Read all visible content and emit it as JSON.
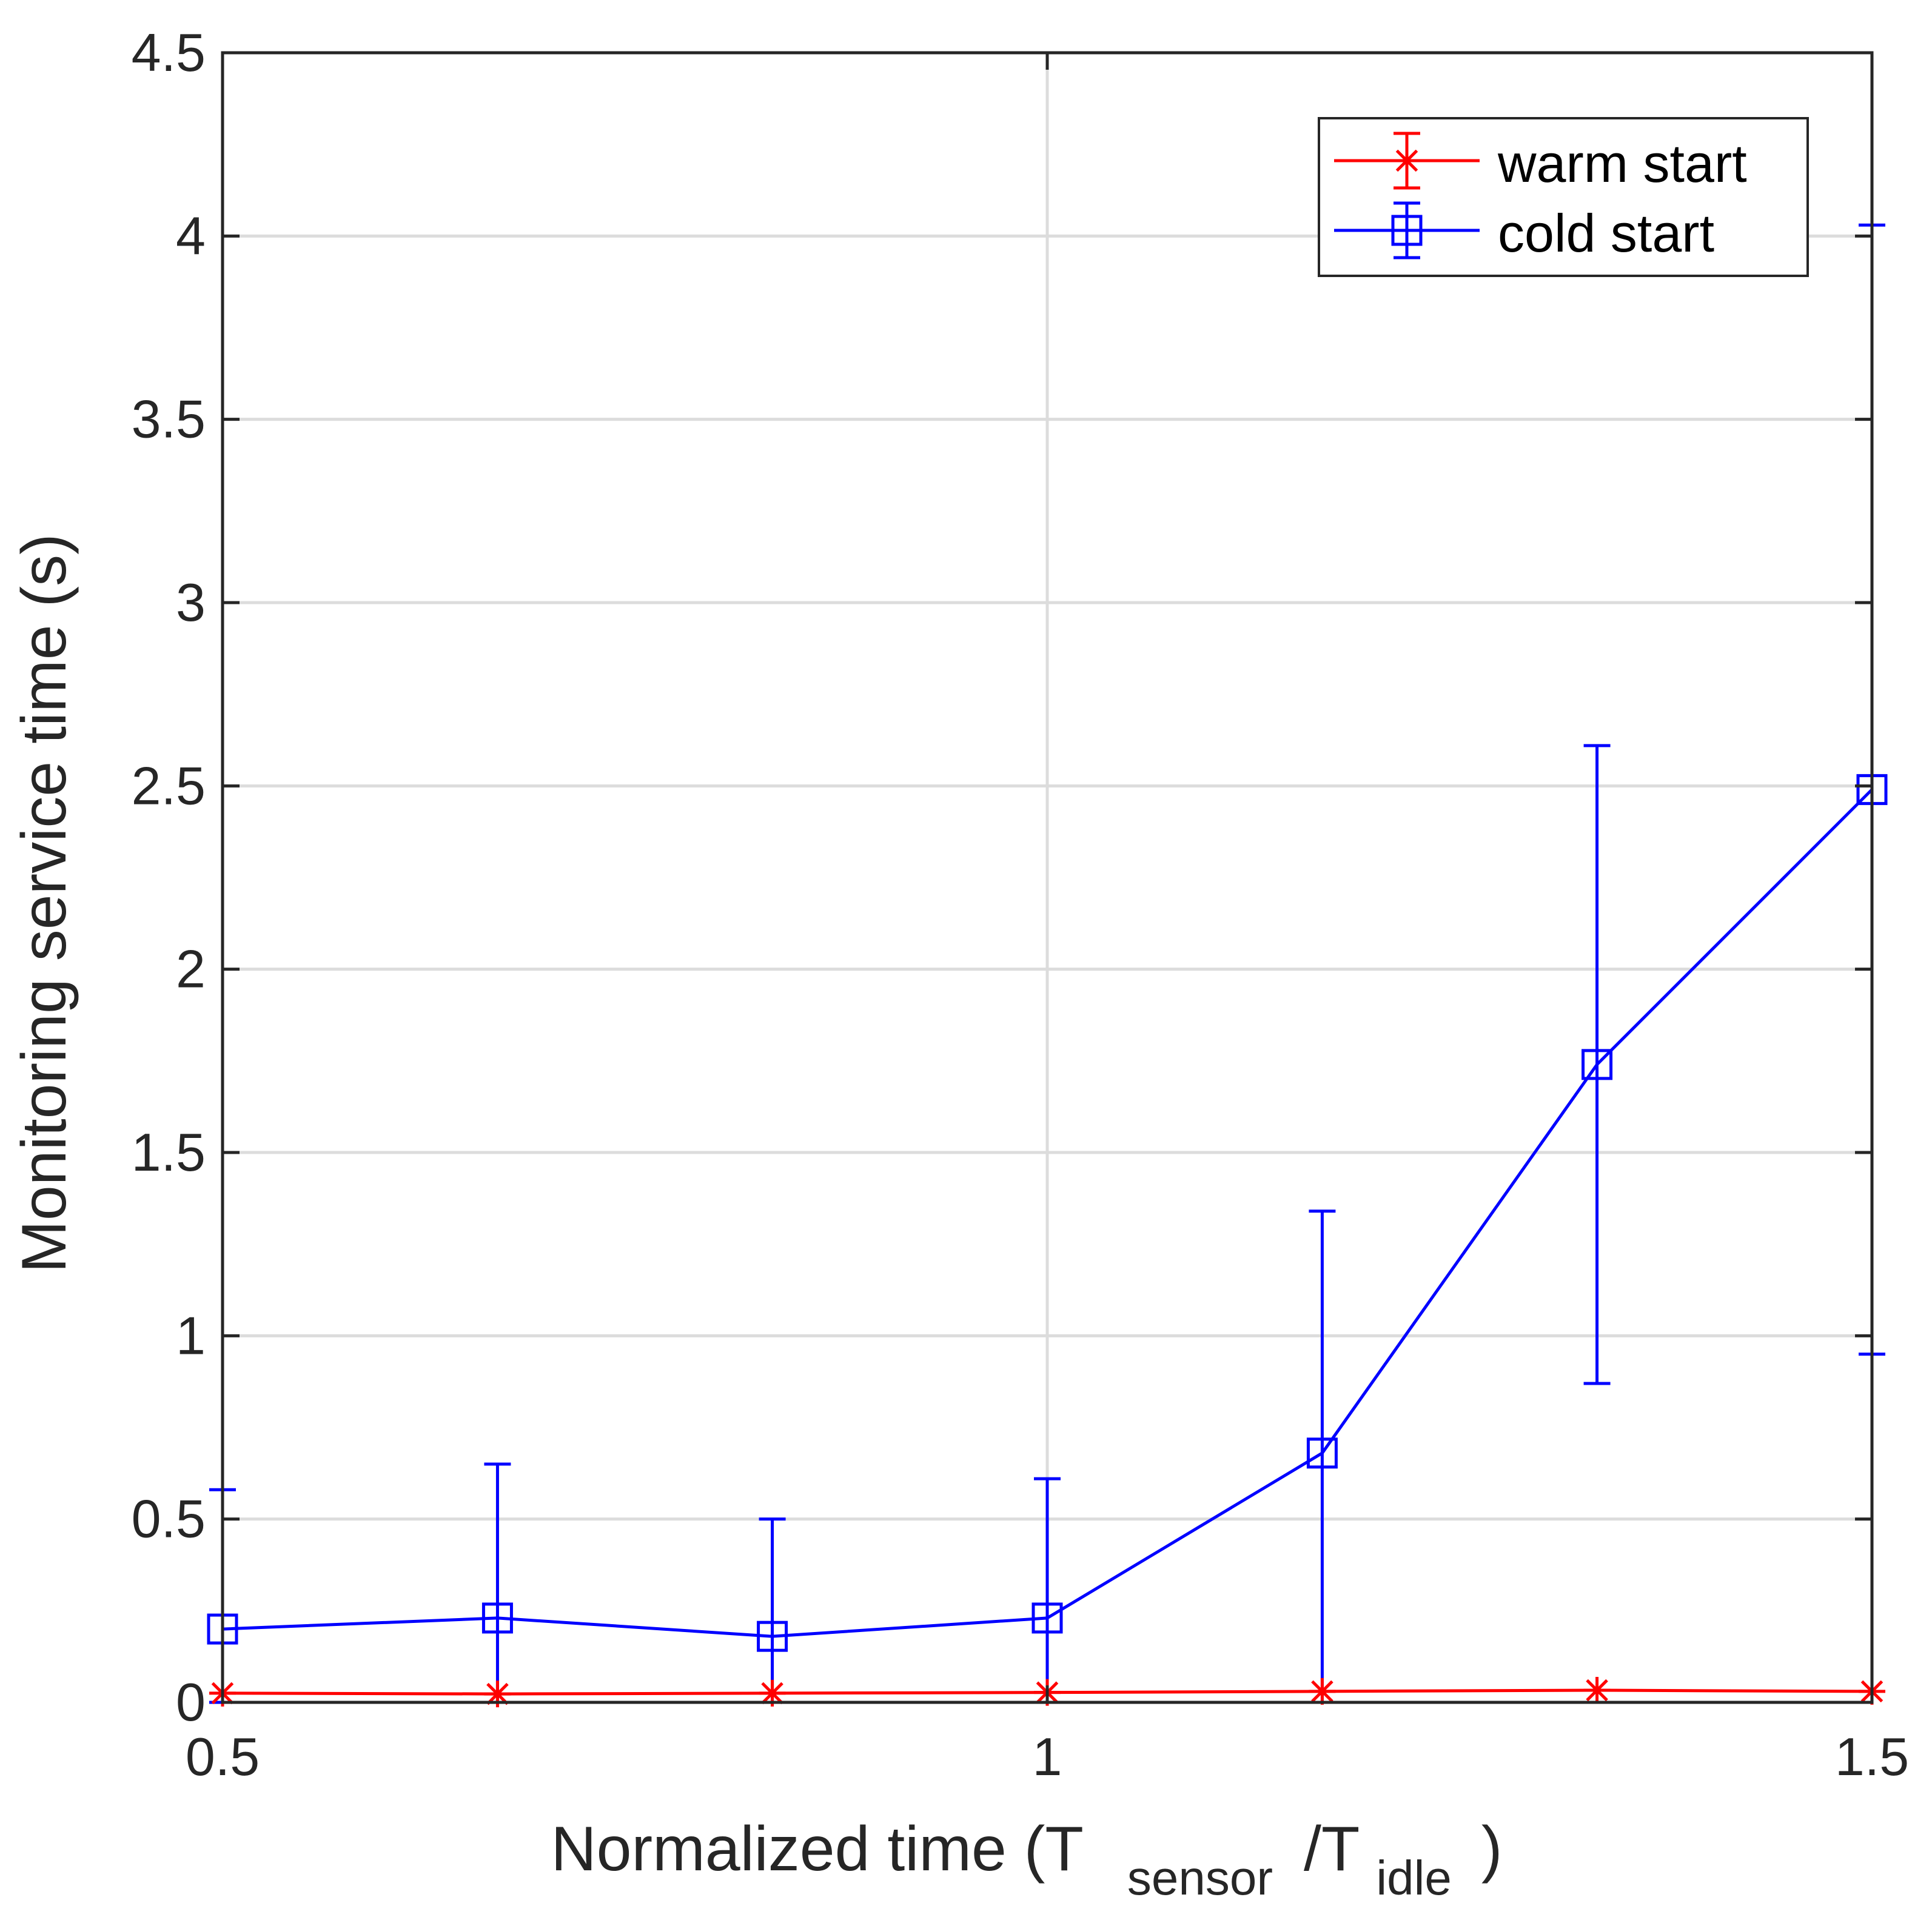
{
  "chart_data": {
    "type": "line",
    "title": "",
    "xlabel": {
      "prefix": "Normalized time (T",
      "sub1": "sensor",
      "mid": "/T",
      "sub2": "idle",
      "suffix": ")"
    },
    "ylabel": "Monitoring service time (s)",
    "xlim": [
      0.5,
      1.5
    ],
    "ylim": [
      0,
      4.5
    ],
    "xticks": [
      0.5,
      1,
      1.5
    ],
    "xtick_labels": [
      "0.5",
      "1",
      "1.5"
    ],
    "yticks": [
      0,
      0.5,
      1,
      1.5,
      2,
      2.5,
      3,
      3.5,
      4,
      4.5
    ],
    "ytick_labels": [
      "0",
      "0.5",
      "1",
      "1.5",
      "2",
      "2.5",
      "3",
      "3.5",
      "4",
      "4.5"
    ],
    "grid": true,
    "legend_position": "top-right",
    "x": [
      0.5,
      0.6667,
      0.8333,
      1.0,
      1.1667,
      1.3333,
      1.5
    ],
    "series": [
      {
        "name": "warm start",
        "color": "#ff0000",
        "marker": "asterisk",
        "values": [
          0.025,
          0.023,
          0.025,
          0.027,
          0.03,
          0.033,
          0.03
        ],
        "error_low": [
          0.025,
          0.023,
          0.025,
          0.027,
          0.03,
          0.033,
          0.03
        ],
        "error_high": [
          0.025,
          0.023,
          0.025,
          0.027,
          0.03,
          0.033,
          0.03
        ]
      },
      {
        "name": "cold start",
        "color": "#0000ff",
        "marker": "square",
        "values": [
          0.2,
          0.23,
          0.18,
          0.23,
          0.68,
          1.74,
          2.49
        ],
        "error_low": [
          0.0,
          0.0,
          0.0,
          0.0,
          0.0,
          0.87,
          0.95
        ],
        "error_high": [
          0.58,
          0.65,
          0.5,
          0.61,
          1.34,
          2.61,
          4.03
        ]
      }
    ]
  },
  "colors": {
    "grid": "#dcdcdc",
    "axis": "#262626",
    "background": "#ffffff"
  }
}
